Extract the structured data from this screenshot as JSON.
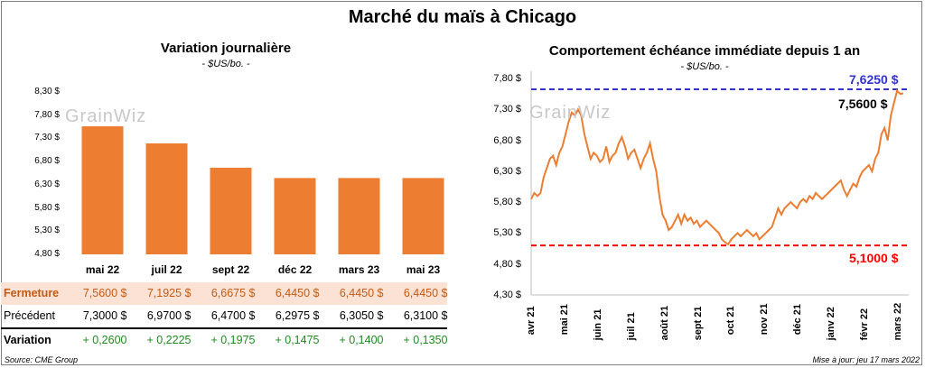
{
  "title": "Marché du maïs à Chicago",
  "left": {
    "subtitle": "Variation journalière",
    "unit": "- $US/bo. -",
    "watermark": "GrainWiz",
    "row_labels": {
      "close": "Fermeture",
      "previous": "Précédent",
      "change": "Variation"
    },
    "close_values": [
      "7,5600 $",
      "7,1925 $",
      "6,6675 $",
      "6,4450 $",
      "6,4450 $",
      "6,4450 $"
    ],
    "previous_values": [
      "7,3000 $",
      "6,9700 $",
      "6,4700 $",
      "6,2975 $",
      "6,3050 $",
      "6,3100 $"
    ],
    "change_values": [
      "+ 0,2600",
      "+ 0,2225",
      "+ 0,1975",
      "+ 0,1475",
      "+ 0,1400",
      "+ 0,1350"
    ],
    "colors": {
      "bar": "#ed7d31",
      "row_close": "#fbe2d5",
      "change_text": "#1e8c1e"
    }
  },
  "right": {
    "subtitle": "Comportement  échéance immédiate depuis 1 an",
    "unit": "- $US/bo. -",
    "watermark": "GrainWiz",
    "colors": {
      "line": "#ed7d31",
      "max": "#3333cc",
      "min": "#ff0000",
      "last": "#000000"
    }
  },
  "footer": {
    "source": "Source: CME Group",
    "updated": "Mise à jour: jeu 17 mars 2022"
  },
  "chart_data": [
    {
      "type": "bar",
      "title": "Variation journalière",
      "categories": [
        "mai 22",
        "juil 22",
        "sept 22",
        "déc 22",
        "mars 23",
        "mai 23"
      ],
      "values": [
        7.56,
        7.1925,
        6.6675,
        6.445,
        6.445,
        6.445
      ],
      "ylim": [
        4.8,
        8.3
      ],
      "yticks": [
        "8,30 $",
        "7,80 $",
        "7,30 $",
        "6,80 $",
        "6,30 $",
        "5,80 $",
        "5,30 $",
        "4,80 $"
      ],
      "ytick_values": [
        8.3,
        7.8,
        7.3,
        6.8,
        6.3,
        5.8,
        5.3,
        4.8
      ]
    },
    {
      "type": "line",
      "title": "Comportement  échéance immédiate depuis 1 an",
      "ylim": [
        4.3,
        7.8
      ],
      "yticks": [
        "7,80 $",
        "7,30 $",
        "6,80 $",
        "6,30 $",
        "5,80 $",
        "5,30 $",
        "4,80 $",
        "4,30 $"
      ],
      "ytick_values": [
        7.8,
        7.3,
        6.8,
        6.3,
        5.8,
        5.3,
        4.8,
        4.3
      ],
      "xlabels": [
        "avr 21",
        "mai 21",
        "juin 21",
        "juil 21",
        "août 21",
        "sept 21",
        "oct 21",
        "nov 21",
        "déc 21",
        "janv 22",
        "févr 22",
        "mars 22"
      ],
      "max_line": {
        "value": 7.625,
        "label": "7,6250 $"
      },
      "min_line": {
        "value": 5.1,
        "label": "5,1000 $"
      },
      "last": {
        "value": 7.56,
        "label": "7,5600 $"
      },
      "series": [
        {
          "values": [
            5.85,
            5.95,
            5.9,
            5.95,
            6.2,
            6.35,
            6.5,
            6.55,
            6.4,
            6.6,
            6.7,
            6.9,
            7.1,
            7.25,
            7.2,
            7.3,
            7.2,
            6.9,
            6.7,
            6.5,
            6.6,
            6.55,
            6.45,
            6.5,
            6.7,
            6.45,
            6.55,
            6.6,
            6.75,
            6.85,
            6.7,
            6.5,
            6.6,
            6.65,
            6.5,
            6.35,
            6.5,
            6.6,
            6.75,
            6.5,
            6.3,
            5.9,
            5.6,
            5.5,
            5.35,
            5.4,
            5.5,
            5.6,
            5.45,
            5.6,
            5.5,
            5.55,
            5.45,
            5.5,
            5.4,
            5.45,
            5.5,
            5.45,
            5.4,
            5.35,
            5.3,
            5.2,
            5.15,
            5.12,
            5.2,
            5.25,
            5.3,
            5.25,
            5.3,
            5.35,
            5.3,
            5.25,
            5.3,
            5.2,
            5.25,
            5.3,
            5.35,
            5.4,
            5.55,
            5.7,
            5.6,
            5.7,
            5.75,
            5.8,
            5.75,
            5.7,
            5.8,
            5.85,
            5.8,
            5.9,
            5.85,
            5.95,
            5.9,
            5.85,
            5.9,
            5.95,
            6.0,
            6.05,
            6.1,
            6.15,
            6.0,
            5.9,
            6.0,
            6.1,
            6.05,
            6.2,
            6.3,
            6.35,
            6.4,
            6.3,
            6.5,
            6.6,
            6.9,
            7.0,
            6.8,
            7.2,
            7.4,
            7.6,
            7.55,
            7.56
          ]
        }
      ]
    }
  ]
}
